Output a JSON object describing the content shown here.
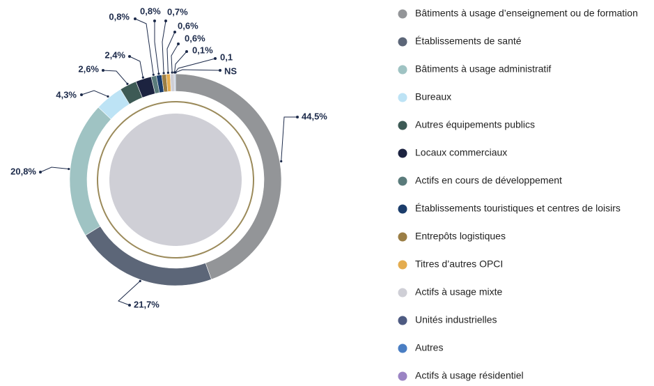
{
  "chart_data": {
    "type": "donut",
    "categories": [
      "Bâtiments à usage d’enseignement ou de formation",
      "Établissements de santé",
      "Bâtiments à usage administratif",
      "Bureaux",
      "Autres équipements  publics",
      "Locaux commerciaux",
      "Actifs en cours de développement",
      "Établissements touristiques et centres de loisirs",
      "Entrepôts logistiques",
      "Titres d’autres OPCI",
      "Actifs à usage mixte",
      "Unités industrielles",
      "Autres",
      "Actifs à usage résidentiel"
    ],
    "values": [
      44.5,
      21.7,
      20.8,
      4.3,
      2.6,
      2.4,
      0.8,
      0.8,
      0.7,
      0.6,
      0.6,
      0.1,
      0.1,
      null
    ],
    "value_labels": [
      "44,5%",
      "21,7%",
      "20,8%",
      "4,3%",
      "2,6%",
      "2,4%",
      "0,8%",
      "0,8%",
      "0,7%",
      "0,6%",
      "0,6%",
      "0,1%",
      "0,1",
      "NS"
    ],
    "colors": [
      "#939598",
      "#5c6678",
      "#9fc3c3",
      "#bde3f5",
      "#3d5a55",
      "#1c2340",
      "#5a7b7b",
      "#1b3d6b",
      "#9b7e45",
      "#e4ac4f",
      "#cfcfd6",
      "#4e5b82",
      "#4a7ec3",
      "#9b84c4"
    ]
  }
}
